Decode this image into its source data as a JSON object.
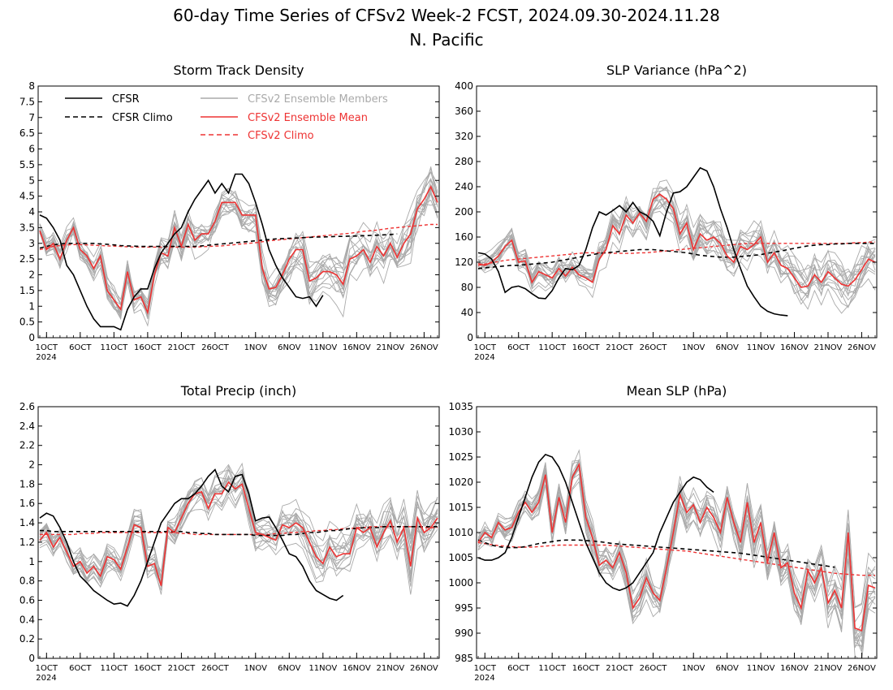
{
  "header": {
    "title": "60-day Time Series of CFSv2 Week-2 FCST, 2024.09.30-2024.11.28",
    "subtitle": "N. Pacific"
  },
  "legend": {
    "cfsr": "CFSR",
    "cfsr_climo": "CFSR Climo",
    "members": "CFSv2 Ensemble Members",
    "ens_mean": "CFSv2 Ensemble Mean",
    "cfsv2_climo": "CFSv2 Climo"
  },
  "colors": {
    "cfsr": "#000000",
    "members": "#aaaaaa",
    "ens_mean": "#ee3333",
    "cfsv2_climo": "#ee3333"
  },
  "x_axis": {
    "tick_days": [
      0,
      5,
      10,
      15,
      20,
      25,
      31,
      36,
      41,
      46,
      51,
      56
    ],
    "tick_labels": [
      "1OCT",
      "6OCT",
      "11OCT",
      "16OCT",
      "21OCT",
      "26OCT",
      "1NOV",
      "6NOV",
      "11NOV",
      "16NOV",
      "21NOV",
      "26NOV"
    ],
    "year_label": "2024"
  },
  "chart_data": [
    {
      "type": "line",
      "title": "Storm Track Density",
      "x_start": "2024-09-30",
      "ylim": [
        0,
        8
      ],
      "yticks": [
        "0",
        "0.5",
        "1",
        "1.5",
        "2",
        "2.5",
        "3",
        "3.5",
        "4",
        "4.5",
        "5",
        "5.5",
        "6",
        "6.5",
        "7",
        "7.5",
        "8"
      ],
      "series": [
        {
          "name": "CFSR",
          "values": [
            3.9,
            3.8,
            3.5,
            3.1,
            2.3,
            2.0,
            1.5,
            1.0,
            0.6,
            0.35,
            0.35,
            0.35,
            0.25,
            0.9,
            1.3,
            1.55,
            1.55,
            2.2,
            2.7,
            3.0,
            3.3,
            3.5,
            4.0,
            4.4,
            4.7,
            5.0,
            4.6,
            4.9,
            4.6,
            5.2,
            5.2,
            4.9,
            4.3,
            3.6,
            2.8,
            2.3,
            1.9,
            1.6,
            1.3,
            1.25,
            1.3,
            1.0,
            1.35
          ]
        },
        {
          "name": "CFSR Climo",
          "values": [
            2.85,
            2.9,
            2.95,
            2.98,
            3.0,
            3.0,
            3.0,
            3.0,
            3.0,
            2.98,
            2.97,
            2.95,
            2.93,
            2.92,
            2.91,
            2.9,
            2.9,
            2.9,
            2.9,
            2.9,
            2.9,
            2.9,
            2.9,
            2.9,
            2.92,
            2.94,
            2.96,
            2.98,
            3.0,
            3.02,
            3.04,
            3.06,
            3.08,
            3.1,
            3.12,
            3.14,
            3.15,
            3.16,
            3.17,
            3.18,
            3.19,
            3.2,
            3.2,
            3.21,
            3.22,
            3.22,
            3.23,
            3.23,
            3.24,
            3.25,
            3.26,
            3.27,
            3.28,
            3.3
          ]
        },
        {
          "name": "CFSv2 Ensemble Mean",
          "values": [
            3.4,
            2.8,
            3.0,
            2.5,
            3.1,
            3.5,
            2.8,
            2.6,
            2.2,
            2.6,
            1.5,
            1.2,
            0.9,
            2.1,
            1.2,
            1.3,
            0.8,
            2.0,
            2.7,
            2.6,
            3.5,
            2.9,
            3.6,
            3.1,
            3.3,
            3.3,
            3.7,
            4.3,
            4.3,
            4.3,
            3.9,
            3.9,
            3.9,
            2.2,
            1.55,
            1.6,
            2.0,
            2.5,
            2.8,
            2.8,
            1.8,
            1.9,
            2.1,
            2.1,
            2.0,
            1.7,
            2.5,
            2.6,
            2.8,
            2.4,
            2.9,
            2.6,
            3.0,
            2.55,
            3.0,
            3.3,
            4.1,
            4.4,
            4.8,
            4.3
          ]
        },
        {
          "name": "CFSv2 Climo",
          "values": [
            2.8,
            2.85,
            2.9,
            2.93,
            2.95,
            2.96,
            2.96,
            2.95,
            2.94,
            2.93,
            2.92,
            2.91,
            2.9,
            2.89,
            2.88,
            2.88,
            2.88,
            2.88,
            2.88,
            2.88,
            2.88,
            2.88,
            2.88,
            2.88,
            2.89,
            2.9,
            2.91,
            2.92,
            2.94,
            2.96,
            2.98,
            3.0,
            3.02,
            3.05,
            3.08,
            3.1,
            3.12,
            3.14,
            3.16,
            3.18,
            3.2,
            3.22,
            3.24,
            3.26,
            3.28,
            3.3,
            3.32,
            3.35,
            3.38,
            3.4,
            3.42,
            3.45,
            3.48,
            3.5,
            3.52,
            3.54,
            3.56,
            3.58,
            3.6,
            3.6
          ]
        }
      ]
    },
    {
      "type": "line",
      "title": "SLP Variance (hPa^2)",
      "x_start": "2024-09-30",
      "ylim": [
        0,
        400
      ],
      "yticks": [
        "0",
        "40",
        "80",
        "120",
        "160",
        "200",
        "240",
        "280",
        "320",
        "360",
        "400"
      ],
      "series": [
        {
          "name": "CFSR",
          "values": [
            135,
            133,
            125,
            105,
            72,
            80,
            82,
            78,
            70,
            63,
            62,
            75,
            95,
            110,
            108,
            115,
            140,
            175,
            200,
            195,
            202,
            210,
            200,
            215,
            200,
            195,
            185,
            162,
            200,
            230,
            232,
            240,
            255,
            270,
            265,
            240,
            205,
            175,
            140,
            110,
            82,
            65,
            50,
            42,
            38,
            36,
            35
          ]
        },
        {
          "name": "CFSR Climo",
          "values": [
            110,
            111,
            112,
            113,
            114,
            115,
            115,
            116,
            117,
            118,
            119,
            120,
            122,
            124,
            126,
            128,
            130,
            132,
            134,
            135,
            136,
            137,
            138,
            139,
            140,
            140,
            140,
            139,
            138,
            137,
            136,
            135,
            133,
            131,
            130,
            129,
            128,
            128,
            128,
            129,
            130,
            131,
            132,
            134,
            136,
            138,
            140,
            142,
            144,
            146,
            147,
            148,
            148,
            149,
            149,
            150,
            150,
            150,
            150,
            150
          ]
        },
        {
          "name": "CFSv2 Ensemble Mean",
          "values": [
            118,
            115,
            120,
            130,
            145,
            155,
            120,
            122,
            88,
            105,
            100,
            95,
            110,
            98,
            112,
            100,
            95,
            88,
            125,
            140,
            178,
            165,
            195,
            182,
            198,
            185,
            220,
            228,
            220,
            205,
            165,
            182,
            140,
            165,
            155,
            160,
            150,
            130,
            120,
            145,
            140,
            148,
            160,
            120,
            135,
            115,
            110,
            95,
            80,
            82,
            100,
            88,
            105,
            95,
            85,
            82,
            92,
            108,
            125,
            120
          ]
        },
        {
          "name": "CFSv2 Climo",
          "values": [
            115,
            117,
            119,
            121,
            123,
            124,
            125,
            126,
            127,
            128,
            129,
            130,
            131,
            132,
            133,
            134,
            135,
            135,
            135,
            135,
            134,
            134,
            134,
            134,
            135,
            135,
            136,
            137,
            138,
            139,
            140,
            141,
            142,
            143,
            144,
            145,
            146,
            147,
            148,
            149,
            150,
            150,
            150,
            150,
            150,
            150,
            150,
            150,
            150,
            150,
            150,
            150,
            150,
            150,
            150,
            150,
            151,
            151,
            152,
            152
          ]
        }
      ]
    },
    {
      "type": "line",
      "title": "Total Precip (inch)",
      "x_start": "2024-09-30",
      "ylim": [
        0,
        2.6
      ],
      "yticks": [
        "0",
        "0.2",
        "0.4",
        "0.6",
        "0.8",
        "1",
        "1.2",
        "1.4",
        "1.6",
        "1.8",
        "2",
        "2.2",
        "2.4",
        "2.6"
      ],
      "series": [
        {
          "name": "CFSR",
          "values": [
            1.45,
            1.5,
            1.47,
            1.35,
            1.2,
            1.0,
            0.85,
            0.78,
            0.7,
            0.65,
            0.6,
            0.56,
            0.57,
            0.54,
            0.65,
            0.8,
            1.0,
            1.2,
            1.4,
            1.5,
            1.6,
            1.65,
            1.65,
            1.7,
            1.78,
            1.88,
            1.95,
            1.78,
            1.72,
            1.88,
            1.9,
            1.7,
            1.42,
            1.45,
            1.46,
            1.35,
            1.22,
            1.08,
            1.05,
            0.95,
            0.8,
            0.7,
            0.66,
            0.62,
            0.6,
            0.65
          ]
        },
        {
          "name": "CFSR Climo",
          "values": [
            1.32,
            1.32,
            1.31,
            1.31,
            1.31,
            1.31,
            1.31,
            1.31,
            1.31,
            1.31,
            1.31,
            1.31,
            1.31,
            1.31,
            1.31,
            1.31,
            1.31,
            1.31,
            1.31,
            1.31,
            1.31,
            1.31,
            1.3,
            1.3,
            1.29,
            1.29,
            1.28,
            1.28,
            1.28,
            1.28,
            1.28,
            1.28,
            1.27,
            1.27,
            1.27,
            1.27,
            1.27,
            1.28,
            1.28,
            1.29,
            1.3,
            1.3,
            1.31,
            1.32,
            1.32,
            1.33,
            1.34,
            1.34,
            1.35,
            1.35,
            1.35,
            1.36,
            1.36,
            1.36,
            1.36,
            1.36,
            1.36,
            1.36,
            1.36,
            1.36
          ]
        },
        {
          "name": "CFSv2 Ensemble Mean",
          "values": [
            1.22,
            1.3,
            1.15,
            1.25,
            1.1,
            0.95,
            1.0,
            0.88,
            0.95,
            0.85,
            1.05,
            1.02,
            0.92,
            1.15,
            1.38,
            1.35,
            0.95,
            0.98,
            0.75,
            1.35,
            1.3,
            1.45,
            1.6,
            1.7,
            1.72,
            1.55,
            1.7,
            1.7,
            1.82,
            1.75,
            1.8,
            1.55,
            1.3,
            1.28,
            1.25,
            1.22,
            1.38,
            1.35,
            1.4,
            1.35,
            1.2,
            1.05,
            0.98,
            1.15,
            1.05,
            1.08,
            1.08,
            1.35,
            1.3,
            1.35,
            1.15,
            1.3,
            1.42,
            1.2,
            1.35,
            0.95,
            1.45,
            1.3,
            1.35,
            1.45
          ]
        },
        {
          "name": "CFSv2 Climo",
          "values": [
            1.28,
            1.28,
            1.28,
            1.28,
            1.28,
            1.28,
            1.29,
            1.29,
            1.29,
            1.3,
            1.3,
            1.3,
            1.3,
            1.3,
            1.3,
            1.3,
            1.3,
            1.3,
            1.3,
            1.3,
            1.3,
            1.29,
            1.29,
            1.28,
            1.28,
            1.28,
            1.28,
            1.28,
            1.28,
            1.28,
            1.28,
            1.28,
            1.28,
            1.28,
            1.28,
            1.29,
            1.29,
            1.3,
            1.3,
            1.31,
            1.31,
            1.32,
            1.32,
            1.33,
            1.33,
            1.34,
            1.34,
            1.35,
            1.35,
            1.36,
            1.36,
            1.36,
            1.36,
            1.36,
            1.36,
            1.36,
            1.36,
            1.35,
            1.35,
            1.35
          ]
        }
      ]
    },
    {
      "type": "line",
      "title": "Mean SLP (hPa)",
      "x_start": "2024-09-30",
      "ylim": [
        985,
        1035
      ],
      "yticks": [
        "985",
        "990",
        "995",
        "1000",
        "1005",
        "1010",
        "1015",
        "1020",
        "1025",
        "1030",
        "1035"
      ],
      "series": [
        {
          "name": "CFSR",
          "values": [
            1005,
            1004.5,
            1004.5,
            1005,
            1006,
            1009,
            1013,
            1017,
            1021,
            1024,
            1025.5,
            1025,
            1023,
            1020,
            1016,
            1012,
            1008,
            1005,
            1002,
            1000,
            999,
            998.5,
            999,
            1000,
            1002,
            1004,
            1006,
            1010,
            1013,
            1016,
            1018,
            1020,
            1021,
            1020.5,
            1019,
            1018
          ]
        },
        {
          "name": "CFSR Climo",
          "values": [
            1008.5,
            1008,
            1007.5,
            1007.2,
            1007,
            1007,
            1007,
            1007.2,
            1007.5,
            1007.8,
            1008,
            1008.2,
            1008.4,
            1008.5,
            1008.5,
            1008.5,
            1008.4,
            1008.3,
            1008.2,
            1008,
            1007.8,
            1007.7,
            1007.6,
            1007.5,
            1007.4,
            1007.3,
            1007.2,
            1007.1,
            1007,
            1006.9,
            1006.8,
            1006.7,
            1006.6,
            1006.5,
            1006.4,
            1006.3,
            1006.2,
            1006.1,
            1006,
            1005.9,
            1005.7,
            1005.5,
            1005.3,
            1005.1,
            1004.9,
            1004.7,
            1004.5,
            1004.3,
            1004.1,
            1003.9,
            1003.7,
            1003.5,
            1003.3,
            1003.1
          ]
        },
        {
          "name": "CFSv2 Ensemble Mean",
          "values": [
            1008,
            1010,
            1009,
            1012,
            1010.5,
            1011,
            1014,
            1016,
            1014,
            1016,
            1021.5,
            1010,
            1017,
            1012,
            1021,
            1023.5,
            1013,
            1009,
            1003.5,
            1004.5,
            1003,
            1006,
            1002,
            995,
            997,
            1001,
            998,
            996.5,
            1003,
            1010,
            1017.5,
            1014,
            1015.5,
            1012,
            1015,
            1013,
            1010,
            1017,
            1012,
            1008,
            1016,
            1008,
            1012,
            1004,
            1010,
            1003,
            1004,
            998,
            995,
            1002.5,
            1000,
            1003,
            996,
            998.5,
            995,
            1010,
            991,
            990.5,
            999.5,
            999
          ]
        },
        {
          "name": "CFSv2 Climo",
          "values": [
            1008,
            1007.8,
            1007.6,
            1007.4,
            1007.3,
            1007.2,
            1007.1,
            1007.1,
            1007.1,
            1007.2,
            1007.3,
            1007.4,
            1007.5,
            1007.5,
            1007.5,
            1007.5,
            1007.5,
            1007.5,
            1007.5,
            1007.5,
            1007.4,
            1007.3,
            1007.2,
            1007.1,
            1007,
            1006.9,
            1006.8,
            1006.7,
            1006.6,
            1006.5,
            1006.4,
            1006.3,
            1006.1,
            1005.9,
            1005.7,
            1005.5,
            1005.3,
            1005.1,
            1004.9,
            1004.7,
            1004.5,
            1004.3,
            1004.1,
            1003.9,
            1003.7,
            1003.5,
            1003.3,
            1003.1,
            1002.9,
            1002.7,
            1002.5,
            1002.3,
            1002.1,
            1001.9,
            1001.8,
            1001.7,
            1001.6,
            1001.5,
            1001.5,
            1001.5
          ]
        }
      ]
    }
  ]
}
